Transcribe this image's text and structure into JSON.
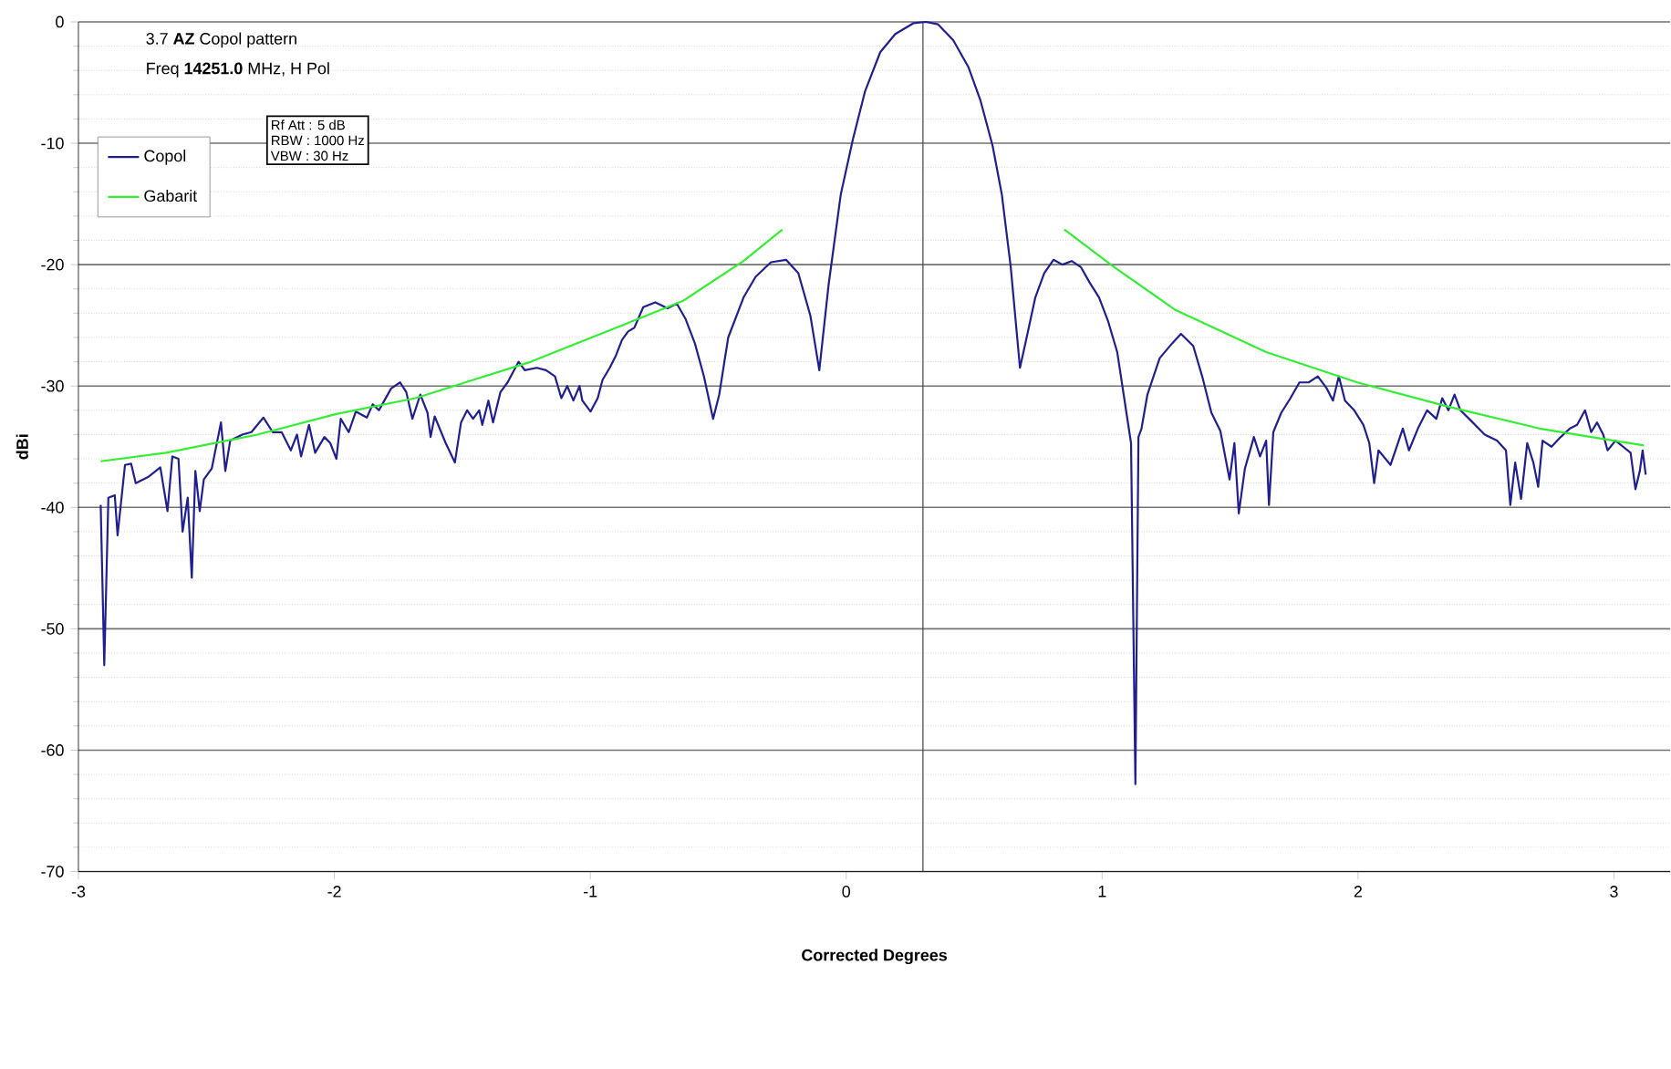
{
  "chart_data": {
    "type": "line",
    "title": "3.7 **AZ** Copol pattern",
    "subtitle": "Freq **14251.0** MHz, H Pol",
    "xlabel": "Corrected Degrees",
    "ylabel": "dBi",
    "annotations": [
      "Rf Att : 5 dB",
      "RBW : 1000 Hz",
      "VBW : 30 Hz"
    ],
    "xlim": [
      -3,
      3.22
    ],
    "ylim": [
      -70,
      0
    ],
    "xticks": [
      -3,
      -2,
      -1,
      0,
      1,
      2,
      3
    ],
    "yticks": [
      -70,
      -60,
      -50,
      -40,
      -30,
      -20,
      -10,
      0
    ],
    "grid": "y",
    "legend": "top left",
    "marker": "none",
    "line_style": "solid",
    "ref_lines": [
      {
        "axis": "x",
        "value": 0.3,
        "color": "#404040"
      }
    ],
    "series": [
      {
        "name": "Copol",
        "color": "#1f1f8f",
        "x": [
          -2.913,
          -2.899,
          -2.883,
          -2.858,
          -2.847,
          -2.818,
          -2.794,
          -2.776,
          -2.728,
          -2.68,
          -2.652,
          -2.633,
          -2.609,
          -2.593,
          -2.573,
          -2.557,
          -2.543,
          -2.526,
          -2.51,
          -2.479,
          -2.443,
          -2.426,
          -2.407,
          -2.36,
          -2.324,
          -2.277,
          -2.241,
          -2.206,
          -2.17,
          -2.146,
          -2.13,
          -2.099,
          -2.075,
          -2.039,
          -2.016,
          -1.992,
          -1.975,
          -1.944,
          -1.916,
          -1.873,
          -1.85,
          -1.826,
          -1.778,
          -1.743,
          -1.719,
          -1.695,
          -1.664,
          -1.636,
          -1.624,
          -1.608,
          -1.565,
          -1.529,
          -1.505,
          -1.481,
          -1.458,
          -1.434,
          -1.422,
          -1.398,
          -1.38,
          -1.351,
          -1.323,
          -1.28,
          -1.256,
          -1.209,
          -1.173,
          -1.138,
          -1.113,
          -1.09,
          -1.066,
          -1.042,
          -1.031,
          -0.999,
          -0.971,
          -0.952,
          -0.924,
          -0.9,
          -0.876,
          -0.852,
          -0.828,
          -0.793,
          -0.746,
          -0.698,
          -0.662,
          -0.627,
          -0.591,
          -0.556,
          -0.52,
          -0.496,
          -0.461,
          -0.401,
          -0.354,
          -0.294,
          -0.235,
          -0.187,
          -0.14,
          -0.105,
          -0.069,
          -0.021,
          0.026,
          0.074,
          0.133,
          0.192,
          0.264,
          0.311,
          0.359,
          0.418,
          0.477,
          0.525,
          0.572,
          0.608,
          0.643,
          0.679,
          0.703,
          0.739,
          0.774,
          0.81,
          0.845,
          0.881,
          0.917,
          0.952,
          0.988,
          1.024,
          1.059,
          1.095,
          1.113,
          1.13,
          1.142,
          1.154,
          1.177,
          1.225,
          1.273,
          1.308,
          1.356,
          1.391,
          1.427,
          1.462,
          1.498,
          1.517,
          1.534,
          1.558,
          1.593,
          1.617,
          1.641,
          1.652,
          1.669,
          1.7,
          1.736,
          1.771,
          1.807,
          1.843,
          1.878,
          1.902,
          1.925,
          1.949,
          1.985,
          2.021,
          2.044,
          2.063,
          2.08,
          2.127,
          2.175,
          2.199,
          2.234,
          2.27,
          2.306,
          2.329,
          2.353,
          2.377,
          2.4,
          2.448,
          2.495,
          2.543,
          2.578,
          2.595,
          2.614,
          2.637,
          2.661,
          2.685,
          2.704,
          2.721,
          2.756,
          2.792,
          2.828,
          2.856,
          2.887,
          2.911,
          2.934,
          2.958,
          2.975,
          3.006,
          3.065,
          3.084,
          3.101,
          3.112,
          3.124
        ],
        "values": [
          -39.8,
          -53.0,
          -39.2,
          -39.0,
          -42.3,
          -36.5,
          -36.4,
          -38.0,
          -37.5,
          -36.7,
          -40.3,
          -35.8,
          -36.0,
          -42.0,
          -39.2,
          -45.8,
          -37.0,
          -40.3,
          -37.7,
          -36.8,
          -33.0,
          -37.0,
          -34.5,
          -34.0,
          -33.8,
          -32.6,
          -33.8,
          -33.8,
          -35.3,
          -34.0,
          -35.8,
          -33.2,
          -35.5,
          -34.2,
          -34.7,
          -36.0,
          -32.7,
          -33.8,
          -32.1,
          -32.6,
          -31.5,
          -32.0,
          -30.2,
          -29.7,
          -30.5,
          -32.7,
          -30.7,
          -32.2,
          -34.2,
          -32.5,
          -34.7,
          -36.3,
          -33.0,
          -32.0,
          -32.7,
          -32.0,
          -33.2,
          -31.2,
          -33.0,
          -30.5,
          -29.7,
          -28.0,
          -28.7,
          -28.5,
          -28.7,
          -29.2,
          -31.0,
          -30.0,
          -31.2,
          -30.0,
          -31.2,
          -32.1,
          -31.0,
          -29.5,
          -28.5,
          -27.5,
          -26.2,
          -25.5,
          -25.2,
          -23.5,
          -23.1,
          -23.6,
          -23.2,
          -24.5,
          -26.5,
          -29.2,
          -32.7,
          -30.7,
          -26.0,
          -22.7,
          -21.0,
          -19.8,
          -19.6,
          -20.7,
          -24.2,
          -28.7,
          -21.7,
          -14.2,
          -9.7,
          -5.7,
          -2.5,
          -1,
          -0.1,
          0,
          -0.2,
          -1.5,
          -3.7,
          -6.5,
          -10.2,
          -14.2,
          -20.2,
          -28.5,
          -26.2,
          -22.7,
          -20.7,
          -19.6,
          -20.0,
          -19.7,
          -20.2,
          -21.5,
          -22.7,
          -24.7,
          -27.2,
          -32.2,
          -34.7,
          -62.8,
          -34.2,
          -33.5,
          -30.7,
          -27.7,
          -26.5,
          -25.7,
          -26.7,
          -29.2,
          -32.2,
          -33.7,
          -37.7,
          -34.7,
          -40.5,
          -36.8,
          -34.2,
          -35.8,
          -34.5,
          -39.8,
          -33.8,
          -32.2,
          -31.0,
          -29.7,
          -29.7,
          -29.2,
          -30.2,
          -31.2,
          -29.2,
          -31.2,
          -32.0,
          -33.2,
          -34.7,
          -38.0,
          -35.3,
          -36.5,
          -33.5,
          -35.3,
          -33.5,
          -32.0,
          -32.7,
          -31.0,
          -32.0,
          -30.7,
          -32.0,
          -33.0,
          -34.0,
          -34.5,
          -35.3,
          -39.8,
          -36.3,
          -39.3,
          -34.7,
          -36.3,
          -38.3,
          -34.5,
          -35.0,
          -34.2,
          -33.5,
          -33.2,
          -32.0,
          -33.8,
          -33.0,
          -34.0,
          -35.3,
          -34.5,
          -35.5,
          -38.5,
          -37.0,
          -35.3,
          -37.3
        ]
      },
      {
        "name": "Gabarit",
        "color": "#33ee33",
        "x": [
          -2.913,
          -2.657,
          -2.301,
          -1.992,
          -1.683,
          -1.232,
          -0.876,
          -0.639,
          -0.401,
          -0.249,
          0.3,
          0.852,
          1.047,
          1.284,
          1.641,
          1.997,
          2.353,
          2.709,
          3.117
        ],
        "values": [
          -36.2,
          -35.5,
          -34.0,
          -32.3,
          -31.0,
          -28.0,
          -25.0,
          -23.0,
          -19.7,
          -17.1,
          null,
          -17.1,
          -20.2,
          -23.7,
          -27.2,
          -29.7,
          -31.7,
          -33.5,
          -34.9
        ]
      }
    ]
  }
}
